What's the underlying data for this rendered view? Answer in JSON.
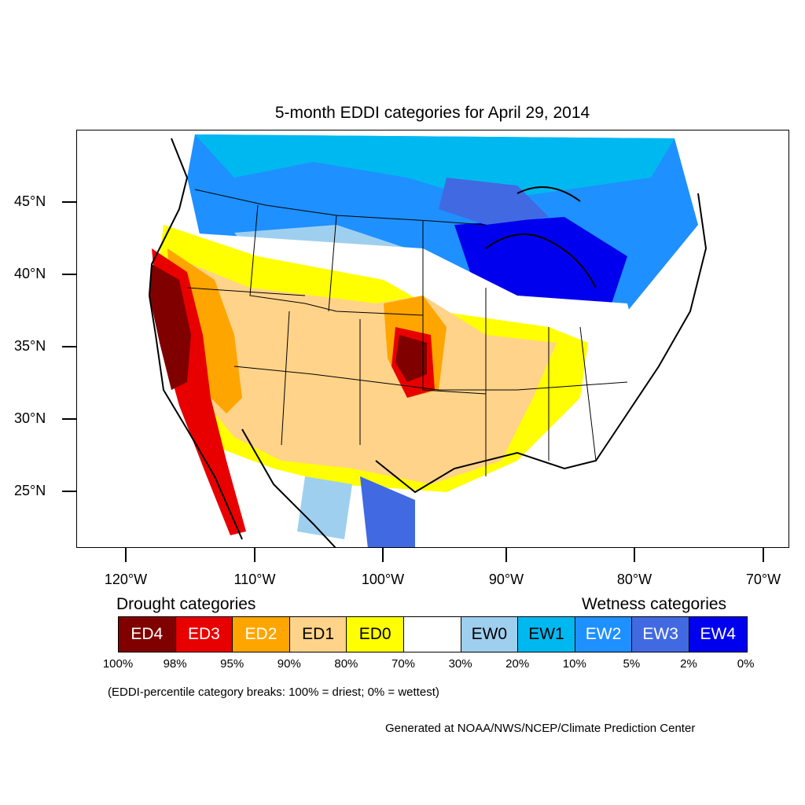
{
  "title": "5-month EDDI categories for April 29, 2014",
  "y_axis_labels": [
    "45°N",
    "40°N",
    "35°N",
    "30°N",
    "25°N"
  ],
  "x_axis_labels": [
    "120°W",
    "110°W",
    "100°W",
    "90°W",
    "80°W",
    "70°W"
  ],
  "drought_heading": "Drought categories",
  "wetness_heading": "Wetness categories",
  "legend": [
    {
      "label": "ED4",
      "color": "#800000",
      "text_color": "#ffffff"
    },
    {
      "label": "ED3",
      "color": "#e80000",
      "text_color": "#ffffff"
    },
    {
      "label": "ED2",
      "color": "#ffa500",
      "text_color": "#ffffff"
    },
    {
      "label": "ED1",
      "color": "#ffd38a",
      "text_color": "#000000"
    },
    {
      "label": "ED0",
      "color": "#ffff00",
      "text_color": "#000000"
    },
    {
      "label": "",
      "color": "#ffffff",
      "text_color": "#000000"
    },
    {
      "label": "EW0",
      "color": "#9fcfef",
      "text_color": "#000000"
    },
    {
      "label": "EW1",
      "color": "#00b8f0",
      "text_color": "#000000"
    },
    {
      "label": "EW2",
      "color": "#1e90ff",
      "text_color": "#ffffff"
    },
    {
      "label": "EW3",
      "color": "#4169e1",
      "text_color": "#ffffff"
    },
    {
      "label": "EW4",
      "color": "#0000ee",
      "text_color": "#ffffff"
    }
  ],
  "percentiles": [
    "100%",
    "98%",
    "95%",
    "90%",
    "80%",
    "70%",
    "30%",
    "20%",
    "10%",
    "5%",
    "2%",
    "0%"
  ],
  "note": "(EDDI-percentile category breaks: 100% = driest; 0% = wettest)",
  "credit": "Generated at NOAA/NWS/NCEP/Climate Prediction Center"
}
